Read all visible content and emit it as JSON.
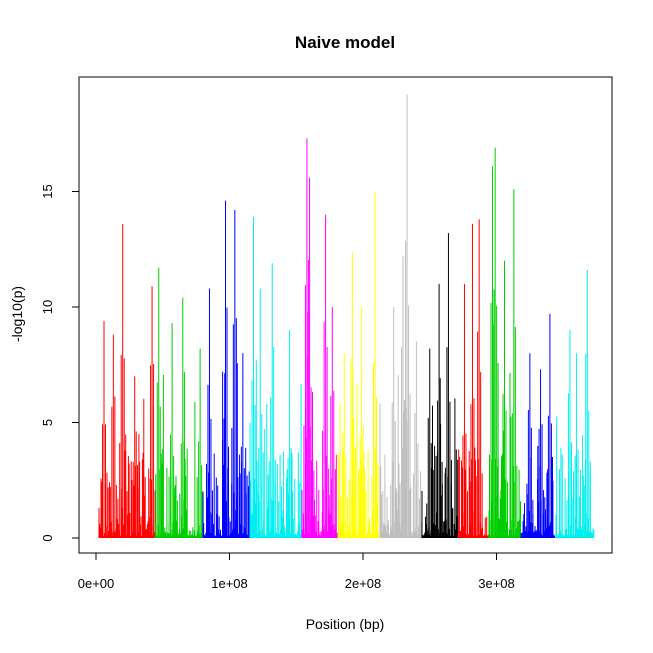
{
  "chart_data": {
    "type": "bar",
    "title": "Naive model",
    "xlabel": "Position (bp)",
    "ylabel": "-log10(p)",
    "xlim": [
      0,
      370000000
    ],
    "ylim": [
      0,
      19.2
    ],
    "x_ticks": [
      0,
      100000000,
      200000000,
      300000000
    ],
    "x_tick_labels": [
      "0e+00",
      "1e+08",
      "2e+08",
      "3e+08"
    ],
    "y_ticks": [
      0,
      5,
      10,
      15
    ],
    "y_tick_labels": [
      "0",
      "5",
      "10",
      "15"
    ],
    "grid": false,
    "legend": "none",
    "series": [
      {
        "color": "#ff0000",
        "range": [
          2000000,
          44000000
        ],
        "peaks": [
          [
            6000000,
            9.4
          ],
          [
            20000000,
            13.6
          ],
          [
            13000000,
            8.8
          ],
          [
            42000000,
            10.9
          ],
          [
            29000000,
            7.0
          ]
        ]
      },
      {
        "color": "#00cd00",
        "range": [
          44000000,
          80000000
        ],
        "peaks": [
          [
            47000000,
            11.7
          ],
          [
            65000000,
            10.4
          ],
          [
            57000000,
            9.3
          ],
          [
            78000000,
            8.2
          ]
        ]
      },
      {
        "color": "#0000ff",
        "range": [
          80000000,
          115000000
        ],
        "peaks": [
          [
            97000000,
            14.6
          ],
          [
            104000000,
            14.2
          ],
          [
            85000000,
            10.8
          ],
          [
            110000000,
            8.0
          ]
        ]
      },
      {
        "color": "#00eeee",
        "range": [
          115000000,
          154000000
        ],
        "peaks": [
          [
            118000000,
            13.9
          ],
          [
            132000000,
            11.9
          ],
          [
            123000000,
            10.8
          ],
          [
            145000000,
            9.0
          ]
        ]
      },
      {
        "color": "#ff00ff",
        "range": [
          154000000,
          181000000
        ],
        "peaks": [
          [
            158000000,
            17.3
          ],
          [
            160000000,
            15.6
          ],
          [
            172000000,
            14.0
          ],
          [
            177000000,
            10.0
          ]
        ]
      },
      {
        "color": "#ffff00",
        "range": [
          181000000,
          212000000
        ],
        "peaks": [
          [
            192000000,
            12.4
          ],
          [
            209000000,
            15.0
          ],
          [
            199000000,
            10.0
          ],
          [
            186000000,
            8.0
          ]
        ]
      },
      {
        "color": "#bebebe",
        "range": [
          212000000,
          244000000
        ],
        "peaks": [
          [
            233000000,
            19.2
          ],
          [
            230000000,
            12.2
          ],
          [
            223000000,
            10.0
          ],
          [
            240000000,
            8.5
          ]
        ]
      },
      {
        "color": "#000000",
        "range": [
          244000000,
          271000000
        ],
        "peaks": [
          [
            264000000,
            13.2
          ],
          [
            257000000,
            11.0
          ],
          [
            250000000,
            8.2
          ]
        ]
      },
      {
        "color": "#ff0000",
        "range": [
          271000000,
          294000000
        ],
        "peaks": [
          [
            282000000,
            13.6
          ],
          [
            287000000,
            13.8
          ],
          [
            276000000,
            11.0
          ]
        ]
      },
      {
        "color": "#00cd00",
        "range": [
          294000000,
          318000000
        ],
        "peaks": [
          [
            299000000,
            16.9
          ],
          [
            297000000,
            16.1
          ],
          [
            313000000,
            15.1
          ],
          [
            306000000,
            12.0
          ]
        ]
      },
      {
        "color": "#0000ff",
        "range": [
          318000000,
          344000000
        ],
        "peaks": [
          [
            340000000,
            9.7
          ],
          [
            325000000,
            8.0
          ],
          [
            333000000,
            7.3
          ]
        ]
      },
      {
        "color": "#00eeee",
        "range": [
          344000000,
          373000000
        ],
        "peaks": [
          [
            368000000,
            11.6
          ],
          [
            355000000,
            9.0
          ],
          [
            360000000,
            8.0
          ]
        ]
      }
    ]
  }
}
